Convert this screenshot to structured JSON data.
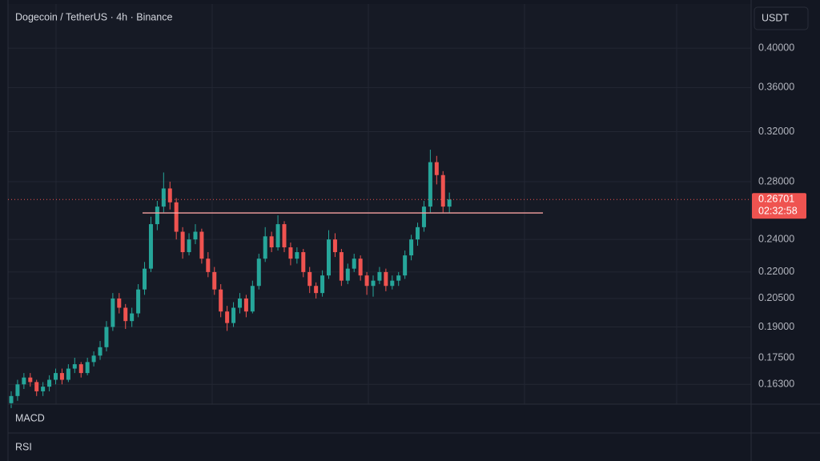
{
  "header": {
    "symbol": "Dogecoin / TetherUS · 4h · Binance",
    "currency": "USDT"
  },
  "panes": [
    "MACD",
    "RSI"
  ],
  "chart_data": {
    "type": "candlestick",
    "log_scale": true,
    "grid": true,
    "up_color": "#26a69a",
    "down_color": "#ef5350",
    "ylim": [
      0.1546,
      0.45
    ],
    "yticks": [
      {
        "value": 0.4,
        "label": "0.40000"
      },
      {
        "value": 0.36,
        "label": "0.36000"
      },
      {
        "value": 0.32,
        "label": "0.32000"
      },
      {
        "value": 0.28,
        "label": "0.28000"
      },
      {
        "value": 0.24,
        "label": "0.24000"
      },
      {
        "value": 0.22,
        "label": "0.22000"
      },
      {
        "value": 0.205,
        "label": "0.20500"
      },
      {
        "value": 0.19,
        "label": "0.19000"
      },
      {
        "value": 0.175,
        "label": "0.17500"
      },
      {
        "value": 0.163,
        "label": "0.16300"
      }
    ],
    "open": [
      0.155,
      0.158,
      0.163,
      0.166,
      0.164,
      0.16,
      0.162,
      0.165,
      0.168,
      0.165,
      0.17,
      0.172,
      0.168,
      0.173,
      0.176,
      0.18,
      0.19,
      0.205,
      0.2,
      0.193,
      0.197,
      0.21,
      0.222,
      0.25,
      0.262,
      0.275,
      0.265,
      0.245,
      0.232,
      0.24,
      0.245,
      0.228,
      0.22,
      0.21,
      0.198,
      0.192,
      0.2,
      0.205,
      0.198,
      0.212,
      0.228,
      0.242,
      0.235,
      0.25,
      0.235,
      0.228,
      0.232,
      0.22,
      0.212,
      0.208,
      0.218,
      0.24,
      0.232,
      0.215,
      0.222,
      0.228,
      0.218,
      0.212,
      0.215,
      0.22,
      0.212,
      0.215,
      0.218,
      0.23,
      0.24,
      0.248,
      0.262,
      0.295,
      0.285,
      0.262
    ],
    "high": [
      0.16,
      0.165,
      0.168,
      0.168,
      0.165,
      0.164,
      0.167,
      0.17,
      0.17,
      0.172,
      0.175,
      0.173,
      0.175,
      0.178,
      0.183,
      0.193,
      0.208,
      0.208,
      0.202,
      0.2,
      0.213,
      0.226,
      0.255,
      0.266,
      0.287,
      0.28,
      0.268,
      0.248,
      0.244,
      0.25,
      0.247,
      0.232,
      0.223,
      0.213,
      0.201,
      0.203,
      0.208,
      0.207,
      0.215,
      0.231,
      0.248,
      0.245,
      0.256,
      0.252,
      0.238,
      0.235,
      0.234,
      0.223,
      0.214,
      0.221,
      0.246,
      0.244,
      0.234,
      0.225,
      0.231,
      0.23,
      0.22,
      0.218,
      0.223,
      0.222,
      0.218,
      0.22,
      0.233,
      0.243,
      0.251,
      0.266,
      0.305,
      0.3,
      0.288,
      0.272
    ],
    "low": [
      0.153,
      0.156,
      0.161,
      0.162,
      0.158,
      0.158,
      0.16,
      0.163,
      0.163,
      0.164,
      0.168,
      0.166,
      0.167,
      0.171,
      0.174,
      0.178,
      0.188,
      0.197,
      0.189,
      0.19,
      0.195,
      0.207,
      0.22,
      0.246,
      0.258,
      0.26,
      0.24,
      0.228,
      0.23,
      0.237,
      0.225,
      0.217,
      0.207,
      0.195,
      0.188,
      0.19,
      0.197,
      0.195,
      0.197,
      0.21,
      0.226,
      0.232,
      0.233,
      0.232,
      0.224,
      0.225,
      0.217,
      0.208,
      0.205,
      0.206,
      0.216,
      0.229,
      0.212,
      0.213,
      0.22,
      0.215,
      0.207,
      0.206,
      0.213,
      0.209,
      0.21,
      0.212,
      0.216,
      0.227,
      0.236,
      0.245,
      0.258,
      0.278,
      0.258,
      0.258
    ],
    "close": [
      0.158,
      0.163,
      0.166,
      0.164,
      0.16,
      0.162,
      0.165,
      0.168,
      0.165,
      0.17,
      0.172,
      0.168,
      0.173,
      0.176,
      0.18,
      0.19,
      0.205,
      0.2,
      0.193,
      0.197,
      0.21,
      0.222,
      0.25,
      0.262,
      0.275,
      0.265,
      0.245,
      0.232,
      0.24,
      0.245,
      0.228,
      0.22,
      0.21,
      0.198,
      0.192,
      0.2,
      0.205,
      0.198,
      0.212,
      0.228,
      0.242,
      0.235,
      0.25,
      0.235,
      0.228,
      0.232,
      0.22,
      0.212,
      0.208,
      0.218,
      0.24,
      0.232,
      0.215,
      0.222,
      0.228,
      0.218,
      0.212,
      0.215,
      0.22,
      0.212,
      0.215,
      0.218,
      0.23,
      0.24,
      0.248,
      0.262,
      0.295,
      0.285,
      0.262,
      0.26701
    ],
    "last_price_label": "0.26701",
    "countdown": "02:32:58",
    "hline": 0.2576,
    "hline_color": "#f7a1a1"
  }
}
